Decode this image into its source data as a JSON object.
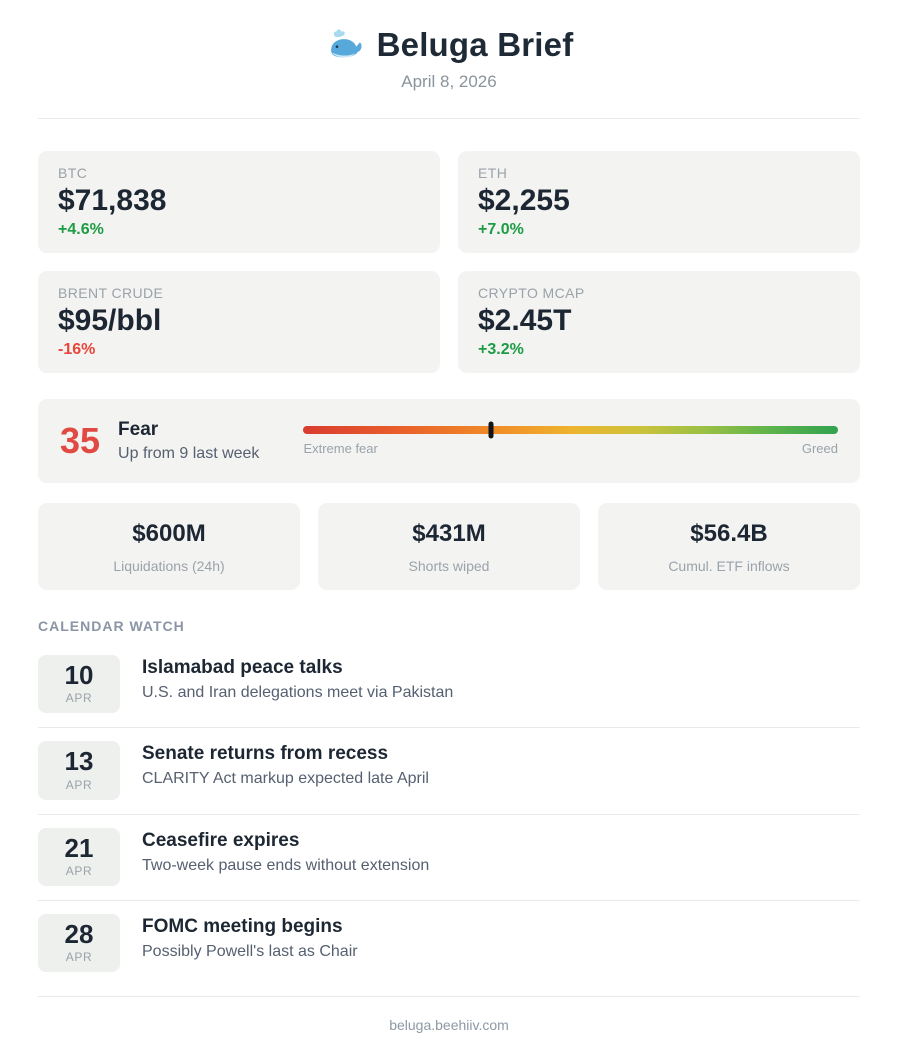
{
  "header": {
    "title": "Beluga Brief",
    "date": "April 8, 2026"
  },
  "stats": [
    {
      "label": "BTC",
      "value": "$71,838",
      "change": "+4.6%",
      "direction": "up"
    },
    {
      "label": "ETH",
      "value": "$2,255",
      "change": "+7.0%",
      "direction": "up"
    },
    {
      "label": "BRENT CRUDE",
      "value": "$95/bbl",
      "change": "-16%",
      "direction": "down"
    },
    {
      "label": "CRYPTO MCAP",
      "value": "$2.45T",
      "change": "+3.2%",
      "direction": "up"
    }
  ],
  "fear_greed": {
    "score": "35",
    "label": "Fear",
    "subtitle": "Up from 9 last week",
    "scale_left": "Extreme fear",
    "scale_right": "Greed",
    "marker_percent": 35
  },
  "metrics": [
    {
      "value": "$600M",
      "label": "Liquidations (24h)"
    },
    {
      "value": "$431M",
      "label": "Shorts wiped"
    },
    {
      "value": "$56.4B",
      "label": "Cumul. ETF inflows"
    }
  ],
  "calendar": {
    "heading": "CALENDAR WATCH",
    "events": [
      {
        "day": "10",
        "month": "APR",
        "title": "Islamabad peace talks",
        "description": "U.S. and Iran delegations meet via Pakistan"
      },
      {
        "day": "13",
        "month": "APR",
        "title": "Senate returns from recess",
        "description": "CLARITY Act markup expected late April"
      },
      {
        "day": "21",
        "month": "APR",
        "title": "Ceasefire expires",
        "description": "Two-week pause ends without extension"
      },
      {
        "day": "28",
        "month": "APR",
        "title": "FOMC meeting begins",
        "description": "Possibly Powell's last as Chair"
      }
    ]
  },
  "footer": {
    "link": "beluga.beehiiv.com"
  },
  "colors": {
    "positive": "#1e9c44",
    "negative": "#e8463a",
    "fear_score": "#e04a42",
    "card_background": "#f3f3f1",
    "muted_text": "#9aa2aa"
  }
}
